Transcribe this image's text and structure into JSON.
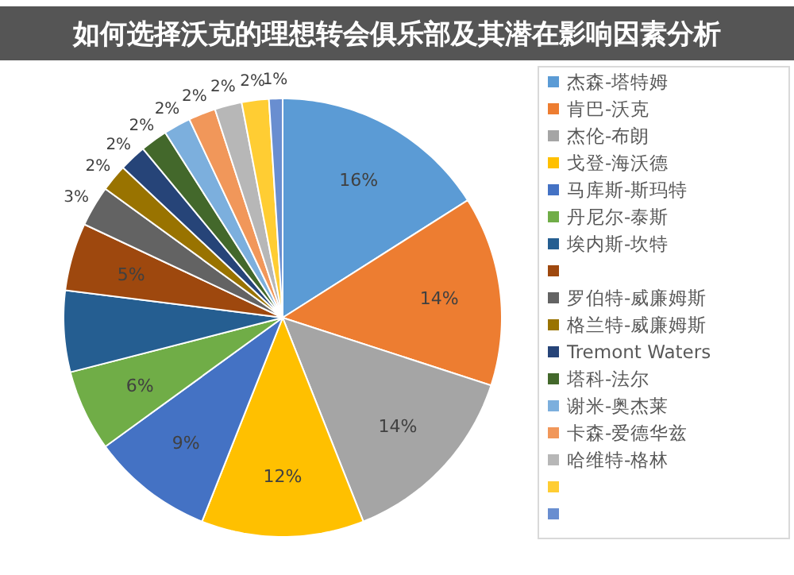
{
  "chart_data": {
    "type": "pie",
    "title": "如何选择沃克的理想转会俱乐部及其潜在影响因素分析",
    "categories": [
      "杰森-塔特姆",
      "肯巴-沃克",
      "杰伦-布朗",
      "戈登-海沃德",
      "马库斯-斯玛特",
      "丹尼尔-泰斯",
      "埃内斯-坎特",
      null,
      "罗伯特-威廉姆斯",
      "格兰特-威廉姆斯",
      "Tremont Waters",
      "塔科-法尔",
      "谢米-奥杰莱",
      "卡森-爱德华兹",
      "哈维特-格林",
      null,
      null
    ],
    "values": [
      16,
      14,
      14,
      12,
      9,
      6,
      6,
      5,
      3,
      2,
      2,
      2,
      2,
      2,
      2,
      2,
      1
    ],
    "colors": [
      "#5b9bd5",
      "#ed7d31",
      "#a5a5a5",
      "#ffc000",
      "#4472c4",
      "#70ad47",
      "#255e91",
      "#9e480e",
      "#636363",
      "#997300",
      "#264478",
      "#43682b",
      "#7cafdd",
      "#f1975a",
      "#b7b7b7",
      "#ffcd33",
      "#698ed0"
    ],
    "value_labels": [
      "16%",
      "14%",
      "14%",
      "12%",
      "9%",
      "6%",
      null,
      "5%",
      "3%",
      "2%",
      "2%",
      "2%",
      "2%",
      "2%",
      "2%",
      "2%",
      "1%"
    ],
    "legend": "right"
  }
}
